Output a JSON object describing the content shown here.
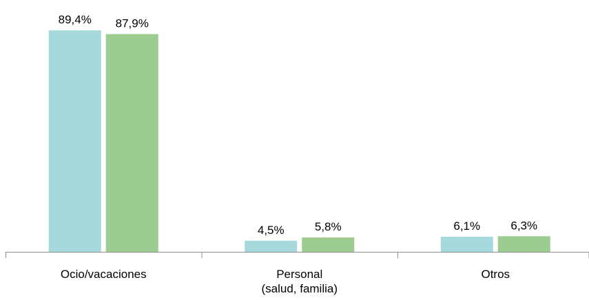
{
  "chart_data": {
    "type": "bar",
    "categories": [
      [
        "Ocio/vacaciones"
      ],
      [
        "Personal",
        "(salud, familia)"
      ],
      [
        "Otros"
      ]
    ],
    "series": [
      {
        "color": "#a6d9dc",
        "values": [
          89.4,
          4.5,
          6.1
        ],
        "labels": [
          "89,4%",
          "4,5%",
          "6,1%"
        ]
      },
      {
        "color": "#9ccc8f",
        "values": [
          87.9,
          5.8,
          6.3
        ],
        "labels": [
          "87,9%",
          "5,8%",
          "6,3%"
        ]
      }
    ],
    "ylim": [
      0,
      100
    ],
    "grid": false,
    "legend": "none",
    "axis_color": "#8c8c8c"
  }
}
